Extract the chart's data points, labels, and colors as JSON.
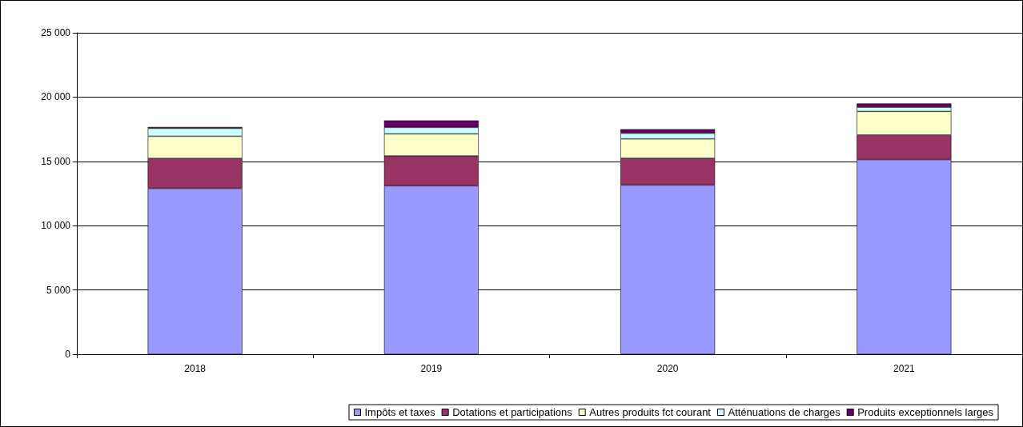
{
  "chart_data": {
    "type": "bar",
    "stacked": true,
    "categories": [
      "2018",
      "2019",
      "2020",
      "2021"
    ],
    "series": [
      {
        "name": "Impôts et taxes",
        "color": "#9999ff",
        "values": [
          12900,
          13100,
          13160,
          15140
        ]
      },
      {
        "name": "Dotations et participations",
        "color": "#993366",
        "values": [
          2330,
          2320,
          2080,
          1910
        ]
      },
      {
        "name": "Autres produits fct courant",
        "color": "#ffffcc",
        "values": [
          1720,
          1720,
          1510,
          1830
        ]
      },
      {
        "name": "Atténuations de charges",
        "color": "#ccffff",
        "values": [
          620,
          500,
          440,
          330
        ]
      },
      {
        "name": "Produits exceptionnels larges",
        "color": "#660066",
        "values": [
          100,
          540,
          310,
          290
        ]
      }
    ],
    "ylim": [
      0,
      25000
    ],
    "yticks": [
      {
        "value": 0,
        "label": "0"
      },
      {
        "value": 5000,
        "label": "5 000"
      },
      {
        "value": 10000,
        "label": "10 000"
      },
      {
        "value": 15000,
        "label": "15 000"
      },
      {
        "value": 20000,
        "label": "20 000"
      },
      {
        "value": 25000,
        "label": "25 000"
      }
    ],
    "grid": "y",
    "legend": "bottom"
  }
}
